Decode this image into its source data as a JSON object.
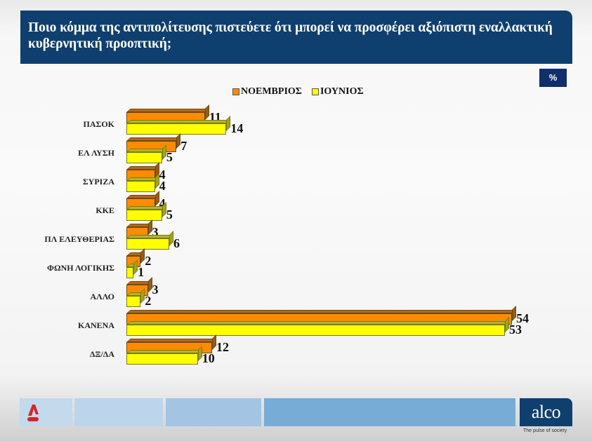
{
  "header": {
    "title": "Ποιο κόμμα της αντιπολίτευσης πιστεύετε ότι μπορεί να προσφέρει αξιόπιστη εναλλακτική κυβερνητική προοπτική;"
  },
  "unit_badge": "%",
  "legend": [
    {
      "label": "ΝΟΕΜΒΡΙΟΣ",
      "color": "#ff8c00"
    },
    {
      "label": "ΙΟΥΝΙΟΣ",
      "color": "#ffff00"
    }
  ],
  "chart_data": {
    "type": "bar",
    "orientation": "horizontal",
    "title": "Ποιο κόμμα της αντιπολίτευσης πιστεύετε ότι μπορεί να προσφέρει αξιόπιστη εναλλακτική κυβερνητική προοπτική;",
    "unit": "%",
    "categories": [
      "ΠΑΣΟΚ",
      "ΕΛ ΛΥΣΗ",
      "ΣΥΡΙΖΑ",
      "ΚΚΕ",
      "ΠΛ ΕΛΕΥΘΕΡΙΑΣ",
      "ΦΩΝΗ ΛΟΓΙΚΗΣ",
      "ΑΛΛΟ",
      "ΚΑΝΕΝΑ",
      "ΔΞ/ΔΑ"
    ],
    "series": [
      {
        "name": "ΝΟΕΜΒΡΙΟΣ",
        "color": "#ff8c00",
        "values": [
          11,
          7,
          4,
          4,
          3,
          2,
          3,
          54,
          12
        ]
      },
      {
        "name": "ΙΟΥΝΙΟΣ",
        "color": "#ffff00",
        "values": [
          14,
          5,
          4,
          5,
          6,
          1,
          2,
          53,
          10
        ]
      }
    ],
    "xlabel": "",
    "ylabel": "",
    "legend_position": "top",
    "grid": false,
    "data_labels": true,
    "style": "3d"
  },
  "footer": {
    "brand": "alco",
    "tagline": "The pulse of society",
    "channel_logo": "alpha-news-logo"
  }
}
